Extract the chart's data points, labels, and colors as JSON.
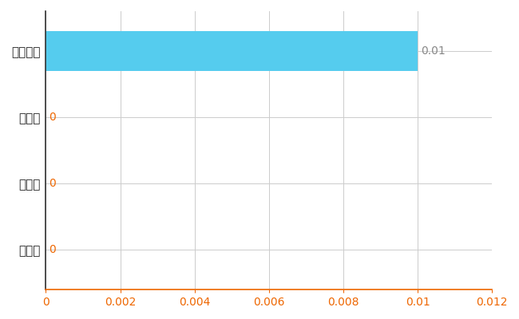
{
  "categories": [
    "大仙市",
    "県平均",
    "県最大",
    "全国平均"
  ],
  "values": [
    0,
    0,
    0,
    0.01
  ],
  "bar_color": "#55CCEE",
  "xlim": [
    0,
    0.012
  ],
  "xticks": [
    0,
    0.002,
    0.004,
    0.006,
    0.008,
    0.01,
    0.012
  ],
  "xtick_labels": [
    "0",
    "0.002",
    "0.004",
    "0.006",
    "0.008",
    "0.01",
    "0.012"
  ],
  "value_labels": [
    "0",
    "0",
    "0",
    "0.01"
  ],
  "value_label_color_zero": "#EE6600",
  "value_label_color_nonzero": "#888888",
  "grid_color": "#CCCCCC",
  "background_color": "#FFFFFF",
  "tick_label_fontsize": 10,
  "bar_height": 0.6,
  "y_label_color": "#222222",
  "x_tick_color": "#EE6600",
  "spine_bottom_color": "#EE6600",
  "spine_left_color": "#333333"
}
